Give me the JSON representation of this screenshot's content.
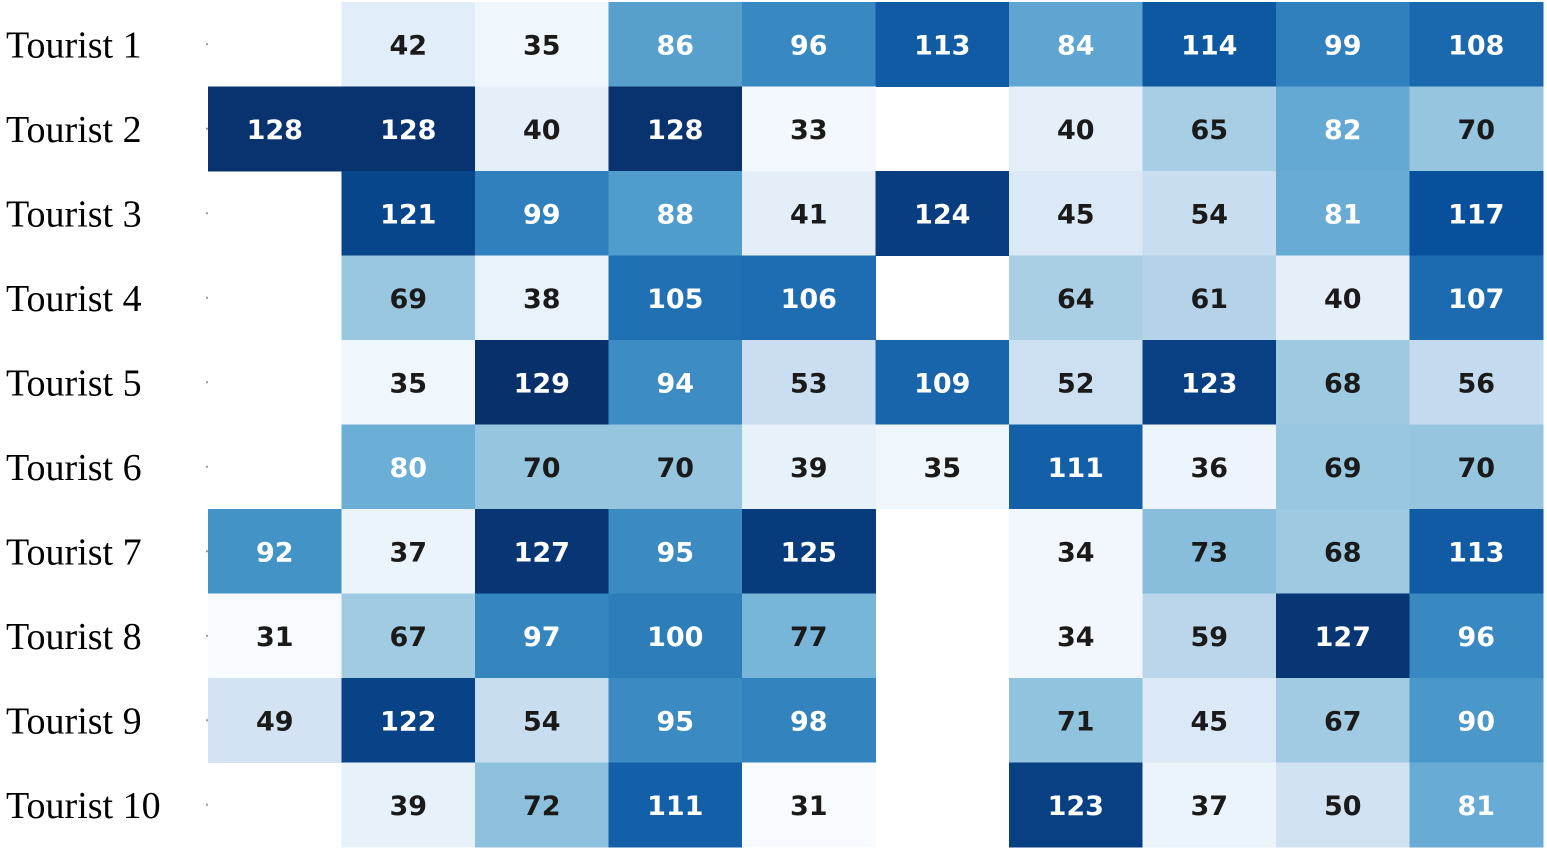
{
  "chart_data": {
    "type": "heatmap",
    "title": "",
    "xlabel": "",
    "ylabel": "",
    "rows": [
      "Tourist 1",
      "Tourist 2",
      "Tourist 3",
      "Tourist 4",
      "Tourist 5",
      "Tourist 6",
      "Tourist 7",
      "Tourist 8",
      "Tourist 9",
      "Tourist 10"
    ],
    "columns": 10,
    "values": [
      [
        null,
        42,
        35,
        86,
        96,
        113,
        84,
        114,
        99,
        108
      ],
      [
        128,
        128,
        40,
        128,
        33,
        null,
        40,
        65,
        82,
        70
      ],
      [
        null,
        121,
        99,
        88,
        41,
        124,
        45,
        54,
        81,
        117
      ],
      [
        null,
        69,
        38,
        105,
        106,
        null,
        64,
        61,
        40,
        107
      ],
      [
        null,
        35,
        129,
        94,
        53,
        109,
        52,
        123,
        68,
        56
      ],
      [
        null,
        80,
        70,
        70,
        39,
        35,
        111,
        36,
        69,
        70
      ],
      [
        92,
        37,
        127,
        95,
        125,
        null,
        34,
        73,
        68,
        113
      ],
      [
        31,
        67,
        97,
        100,
        77,
        null,
        34,
        59,
        127,
        96
      ],
      [
        49,
        122,
        54,
        95,
        98,
        null,
        71,
        45,
        67,
        90
      ],
      [
        null,
        39,
        72,
        111,
        31,
        null,
        123,
        37,
        50,
        81
      ]
    ],
    "value_range": [
      31,
      129
    ],
    "colormap": "Blues",
    "colors": {
      "low": "#f7fbff",
      "high": "#08306b",
      "empty": "#ffffff",
      "text_dark": "#1a1a1a",
      "text_light": "#ffffff"
    },
    "grid": false,
    "legend": "none"
  }
}
